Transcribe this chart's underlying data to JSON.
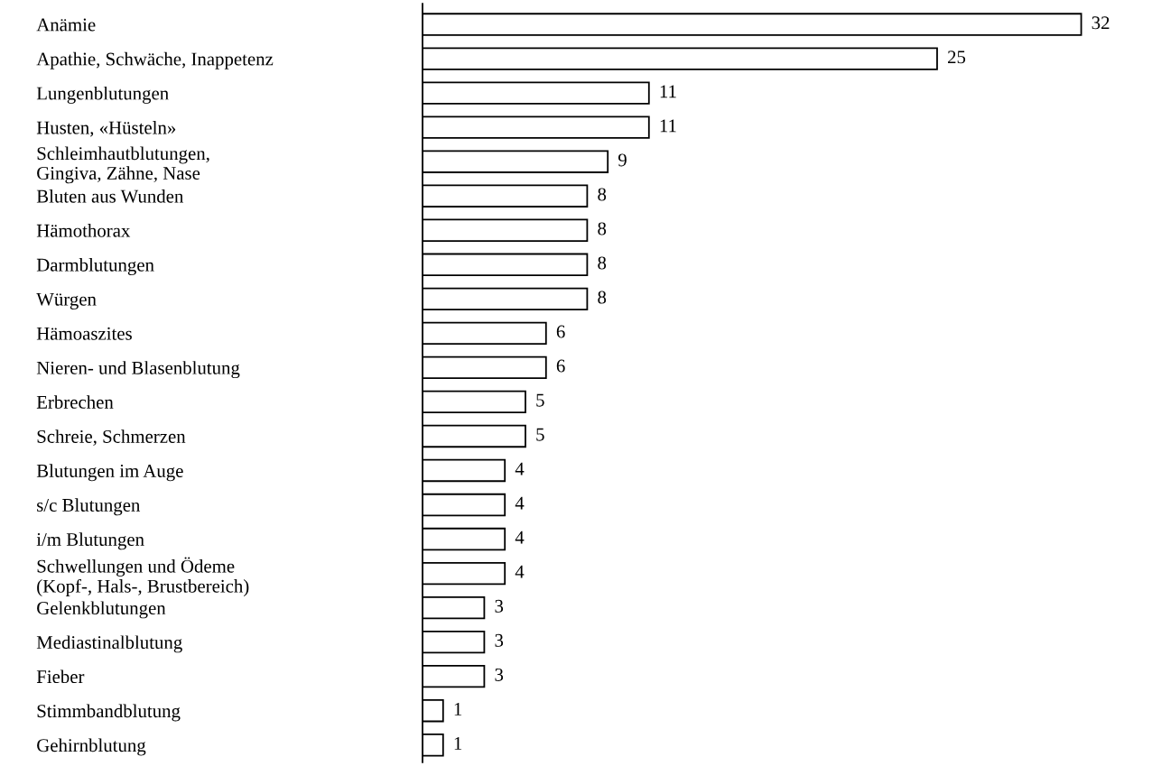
{
  "chart_data": {
    "type": "bar",
    "orientation": "horizontal",
    "data_labels": true,
    "tick_labels": "y",
    "grid": false,
    "legend": false,
    "color": "#ffffff",
    "categories": [
      "Anämie",
      "Apathie, Schwäche, Inappetenz",
      "Lungenblutungen",
      "Husten, «Hüsteln»",
      "Schleimhautblutungen,\nGingiva, Zähne, Nase",
      "Bluten aus Wunden",
      "Hämothorax",
      "Darmblutungen",
      "Würgen",
      "Hämoaszites",
      "Nieren- und Blasenblutung",
      "Erbrechen",
      "Schreie, Schmerzen",
      "Blutungen im Auge",
      "s/c Blutungen",
      "i/m Blutungen",
      "Schwellungen und Ödeme\n(Kopf-, Hals-, Brustbereich)",
      "Gelenkblutungen",
      "Mediastinalblutung",
      "Fieber",
      "Stimmbandblutung",
      "Gehirnblutung"
    ],
    "values": [
      32,
      25,
      11,
      11,
      9,
      8,
      8,
      8,
      8,
      6,
      6,
      5,
      5,
      4,
      4,
      4,
      4,
      3,
      3,
      3,
      1,
      1
    ]
  }
}
